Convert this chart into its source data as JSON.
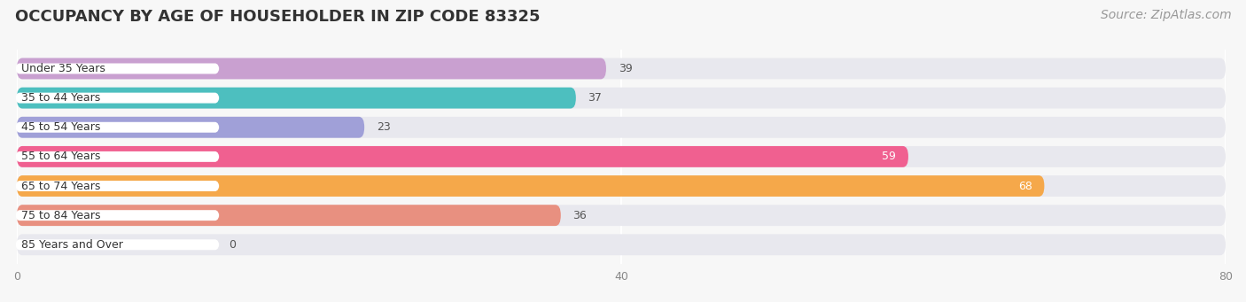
{
  "title": "OCCUPANCY BY AGE OF HOUSEHOLDER IN ZIP CODE 83325",
  "source": "Source: ZipAtlas.com",
  "categories": [
    "Under 35 Years",
    "35 to 44 Years",
    "45 to 54 Years",
    "55 to 64 Years",
    "65 to 74 Years",
    "75 to 84 Years",
    "85 Years and Over"
  ],
  "values": [
    39,
    37,
    23,
    59,
    68,
    36,
    0
  ],
  "bar_colors": [
    "#c9a0d0",
    "#4dbfbf",
    "#a0a0d8",
    "#f06090",
    "#f5a84a",
    "#e89080",
    "#a0c0e0"
  ],
  "xlim": [
    0,
    80
  ],
  "xticks": [
    0,
    40,
    80
  ],
  "background_color": "#f7f7f7",
  "bar_background": "#e8e8ee",
  "title_fontsize": 13,
  "source_fontsize": 10,
  "label_fontsize": 9,
  "value_fontsize": 9,
  "value_color_outside": "#555555",
  "value_color_inside": "#ffffff",
  "label_bg_color": "#ffffff",
  "label_text_color": "#333333"
}
